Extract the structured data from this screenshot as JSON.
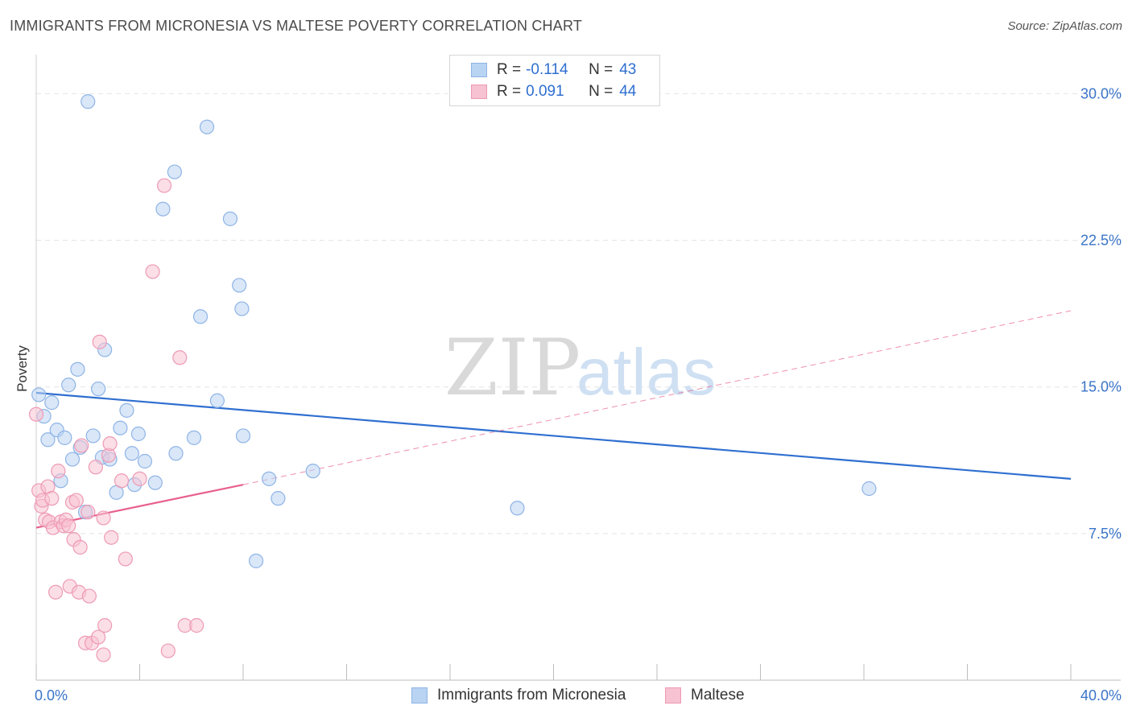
{
  "title": "IMMIGRANTS FROM MICRONESIA VS MALTESE POVERTY CORRELATION CHART",
  "source": "Source: ZipAtlas.com",
  "watermark": {
    "zip": "ZIP",
    "atlas": "atlas"
  },
  "legend": {
    "rows": [
      {
        "r_label": "R =",
        "r_value": "-0.114",
        "n_label": "N =",
        "n_value": "43"
      },
      {
        "r_label": "R =",
        "r_value": "0.091",
        "n_label": "N =",
        "n_value": "44"
      }
    ]
  },
  "bottom_legend": [
    "Immigrants from Micronesia",
    "Maltese"
  ],
  "colors": {
    "blue_fill": "#b9d3f3",
    "blue_stroke": "#8fb4e6",
    "blue_line": "#2f6fd0",
    "pink_fill": "#f7c2d2",
    "pink_stroke": "#ee9ab5",
    "pink_line": "#e8608d",
    "axis_label": "#3a74c8",
    "grid": "#e4e4e4"
  },
  "chart_data": {
    "type": "scatter",
    "title": "IMMIGRANTS FROM MICRONESIA VS MALTESE POVERTY CORRELATION CHART",
    "xlabel": "",
    "ylabel": "Poverty",
    "xlim": [
      0,
      40
    ],
    "ylim": [
      0,
      31.5
    ],
    "x_tick_labels": [
      {
        "value": 0,
        "label": "0.0%"
      },
      {
        "value": 40,
        "label": "40.0%"
      }
    ],
    "y_tick_labels": [
      {
        "value": 7.5,
        "label": "7.5%"
      },
      {
        "value": 15.0,
        "label": "15.0%"
      },
      {
        "value": 22.5,
        "label": "22.5%"
      },
      {
        "value": 30.0,
        "label": "30.0%"
      }
    ],
    "grid": true,
    "legend_position": "top-center",
    "series": [
      {
        "name": "Immigrants from Micronesia",
        "r": -0.114,
        "n": 43,
        "trend": {
          "x0": 0,
          "y0": 14.7,
          "x1": 40,
          "y1": 10.3,
          "style": "solid"
        },
        "points": [
          [
            0.1,
            14.6
          ],
          [
            0.3,
            13.5
          ],
          [
            0.45,
            12.3
          ],
          [
            0.6,
            14.2
          ],
          [
            0.8,
            12.8
          ],
          [
            0.95,
            10.2
          ],
          [
            1.1,
            12.4
          ],
          [
            1.25,
            15.1
          ],
          [
            1.4,
            11.3
          ],
          [
            1.6,
            15.9
          ],
          [
            1.7,
            11.9
          ],
          [
            1.9,
            8.6
          ],
          [
            2.0,
            29.6
          ],
          [
            2.2,
            12.5
          ],
          [
            2.4,
            14.9
          ],
          [
            2.55,
            11.4
          ],
          [
            2.65,
            16.9
          ],
          [
            2.85,
            11.3
          ],
          [
            3.1,
            9.6
          ],
          [
            3.25,
            12.9
          ],
          [
            3.5,
            13.8
          ],
          [
            3.7,
            11.6
          ],
          [
            3.8,
            10.0
          ],
          [
            3.95,
            12.6
          ],
          [
            4.2,
            11.2
          ],
          [
            4.6,
            10.1
          ],
          [
            4.9,
            24.1
          ],
          [
            5.35,
            26.0
          ],
          [
            5.4,
            11.6
          ],
          [
            6.1,
            12.4
          ],
          [
            6.35,
            18.6
          ],
          [
            6.6,
            28.3
          ],
          [
            7.0,
            14.3
          ],
          [
            7.5,
            23.6
          ],
          [
            7.85,
            20.2
          ],
          [
            7.95,
            19.0
          ],
          [
            8.0,
            12.5
          ],
          [
            8.5,
            6.1
          ],
          [
            9.0,
            10.3
          ],
          [
            9.35,
            9.3
          ],
          [
            10.7,
            10.7
          ],
          [
            18.6,
            8.8
          ],
          [
            32.2,
            9.8
          ]
        ]
      },
      {
        "name": "Maltese",
        "r": 0.091,
        "n": 44,
        "trend_solid": {
          "x0": 0,
          "y0": 7.8,
          "x1": 8.0,
          "y1": 10.0,
          "style": "solid"
        },
        "trend_dashed": {
          "x0": 8.0,
          "y0": 10.0,
          "x1": 40,
          "y1": 18.9,
          "style": "dashed"
        },
        "points": [
          [
            0.0,
            13.6
          ],
          [
            0.1,
            9.7
          ],
          [
            0.2,
            8.9
          ],
          [
            0.25,
            9.2
          ],
          [
            0.35,
            8.2
          ],
          [
            0.45,
            9.9
          ],
          [
            0.5,
            8.1
          ],
          [
            0.6,
            9.3
          ],
          [
            0.65,
            7.8
          ],
          [
            0.75,
            4.5
          ],
          [
            0.85,
            10.7
          ],
          [
            0.95,
            8.1
          ],
          [
            1.05,
            7.9
          ],
          [
            1.15,
            8.2
          ],
          [
            1.25,
            7.9
          ],
          [
            1.3,
            4.8
          ],
          [
            1.4,
            9.1
          ],
          [
            1.45,
            7.2
          ],
          [
            1.55,
            9.2
          ],
          [
            1.65,
            4.5
          ],
          [
            1.7,
            6.8
          ],
          [
            1.75,
            12.0
          ],
          [
            1.9,
            1.9
          ],
          [
            2.0,
            8.6
          ],
          [
            2.05,
            4.3
          ],
          [
            2.15,
            1.9
          ],
          [
            2.3,
            10.9
          ],
          [
            2.4,
            2.2
          ],
          [
            2.45,
            17.3
          ],
          [
            2.6,
            8.3
          ],
          [
            2.6,
            1.3
          ],
          [
            2.65,
            2.8
          ],
          [
            2.8,
            11.5
          ],
          [
            2.85,
            12.1
          ],
          [
            2.9,
            7.3
          ],
          [
            3.3,
            10.2
          ],
          [
            3.45,
            6.2
          ],
          [
            4.0,
            10.3
          ],
          [
            4.5,
            20.9
          ],
          [
            4.95,
            25.3
          ],
          [
            5.1,
            1.5
          ],
          [
            5.55,
            16.5
          ],
          [
            5.75,
            2.8
          ],
          [
            6.2,
            2.8
          ]
        ]
      }
    ]
  }
}
